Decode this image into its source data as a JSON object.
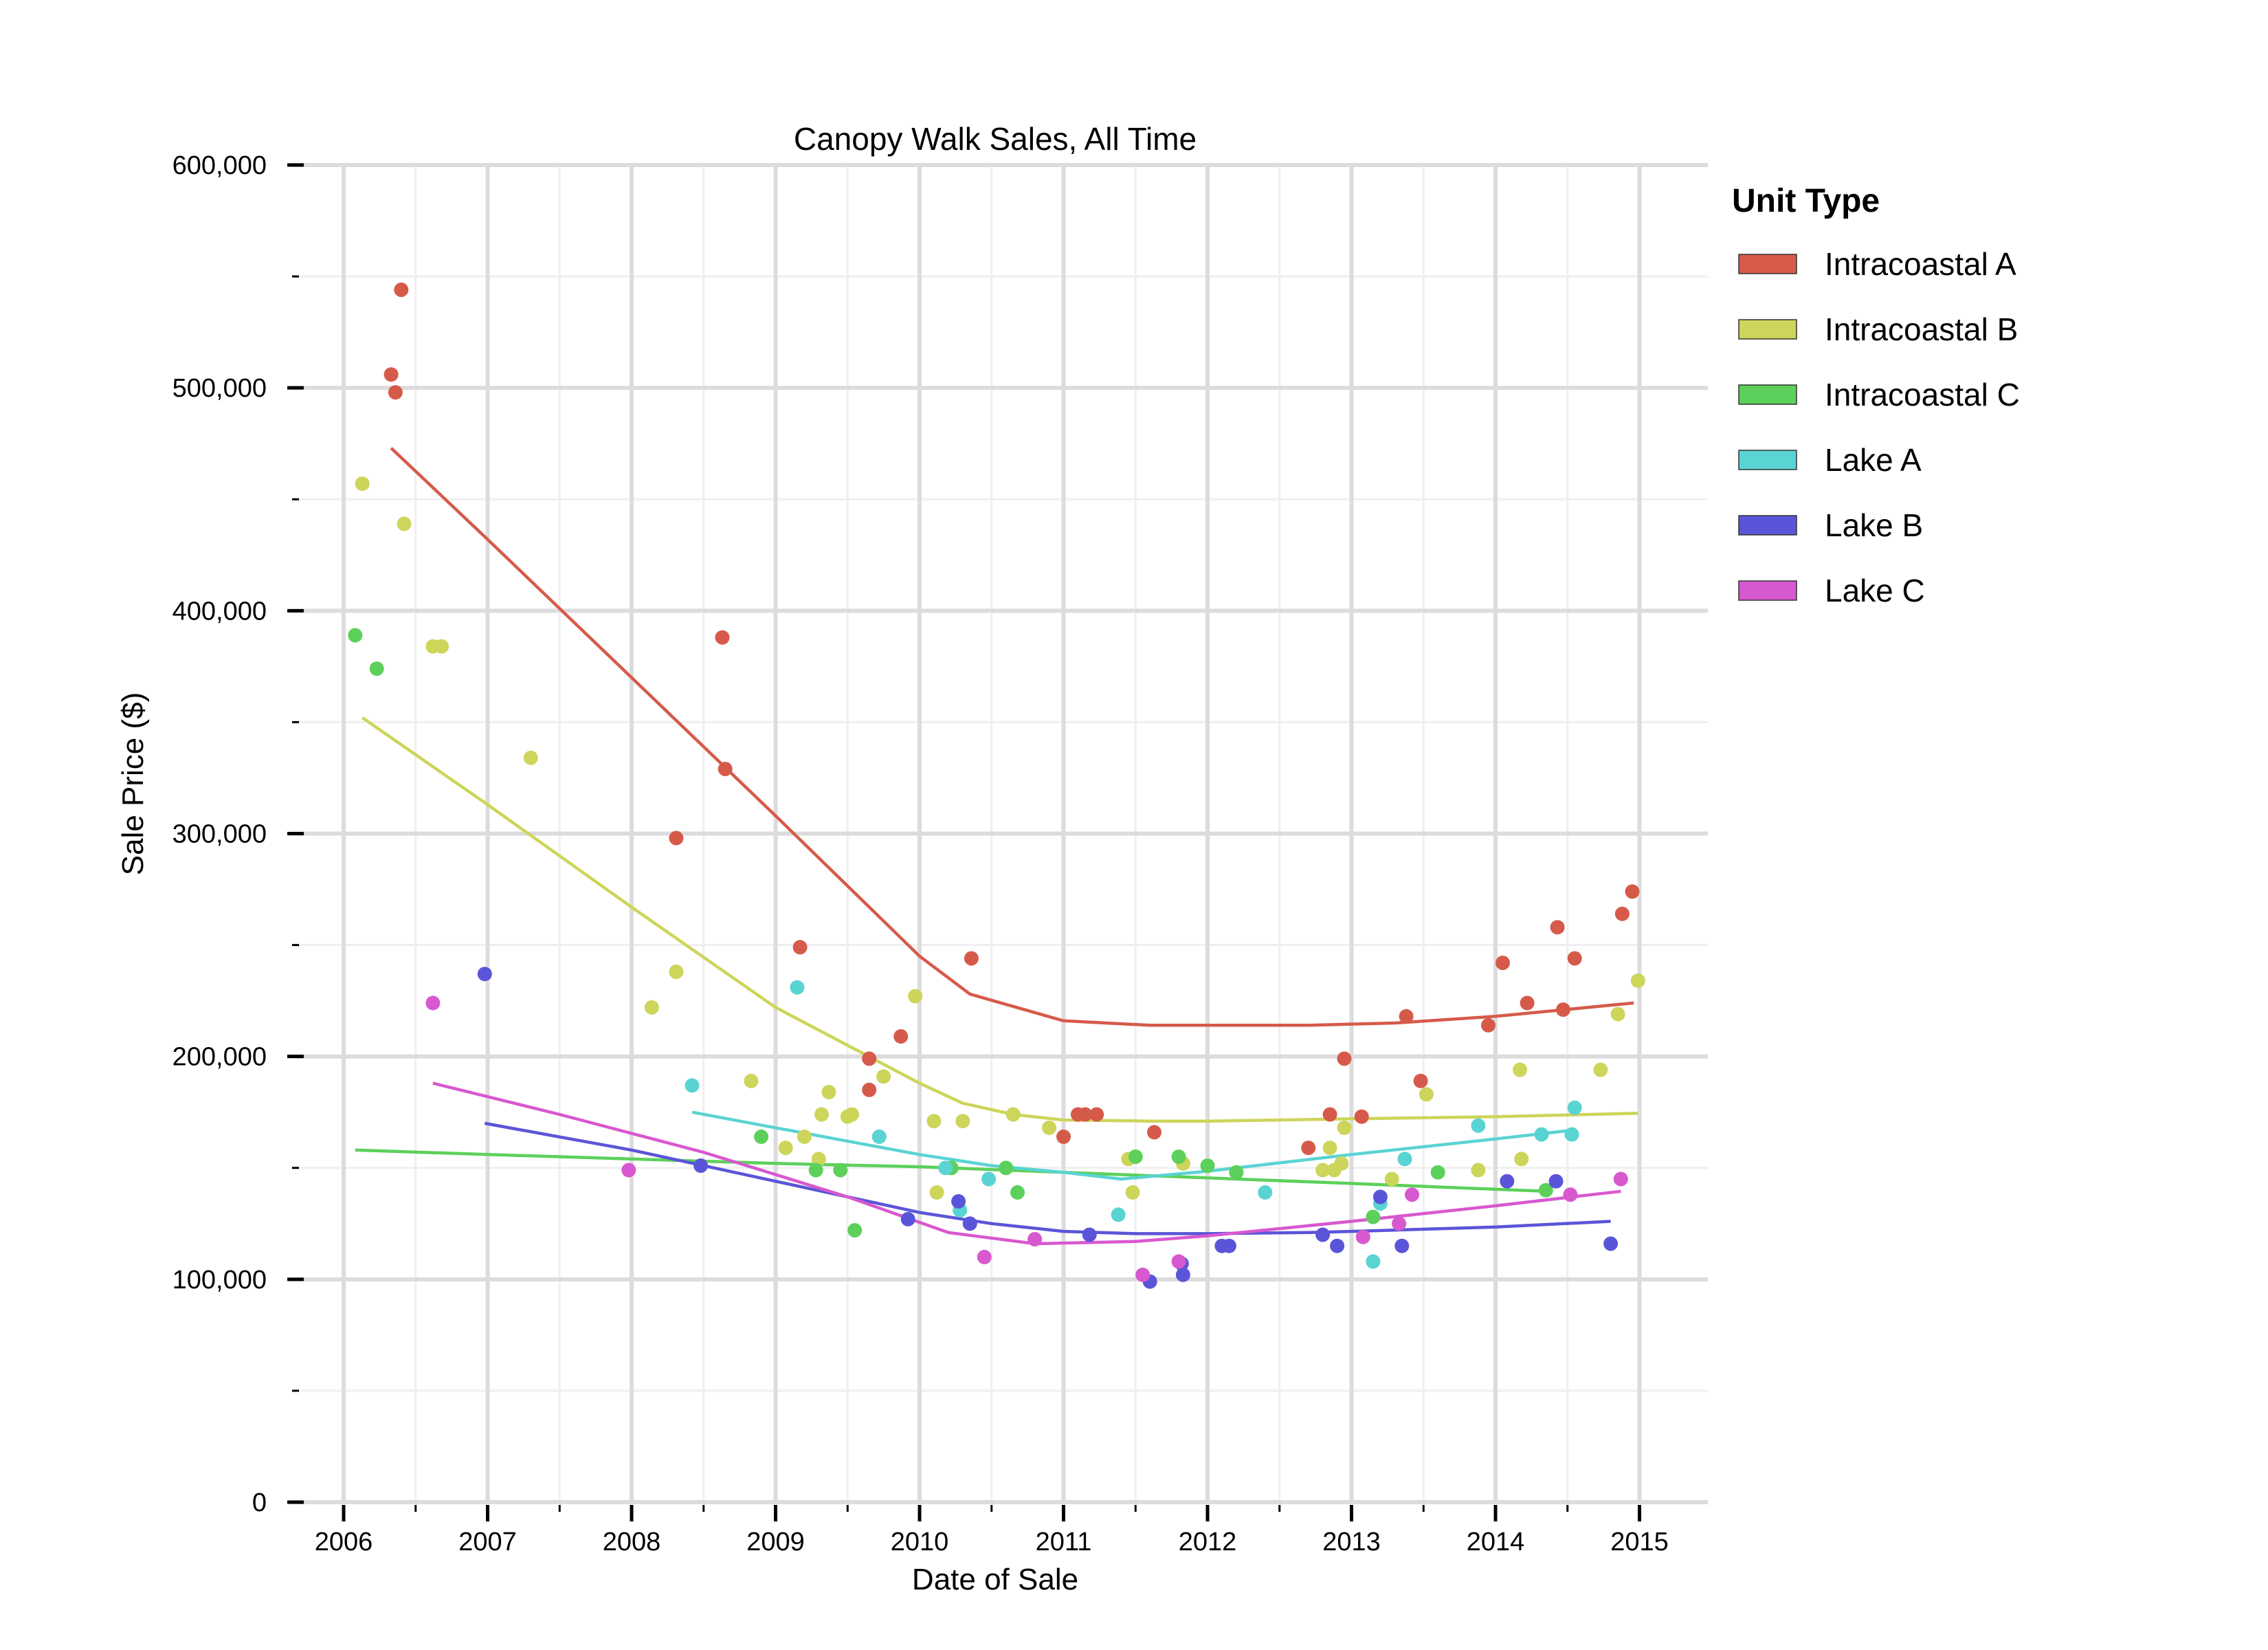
{
  "chart_data": {
    "type": "scatter",
    "title": "Canopy Walk Sales, All Time",
    "xlabel": "Date of Sale",
    "ylabel": "Sale Price ($)",
    "xlim": [
      2005.9,
      2015.3
    ],
    "ylim": [
      0,
      600000
    ],
    "x_ticks": [
      2006,
      2007,
      2008,
      2009,
      2010,
      2011,
      2012,
      2013,
      2014,
      2015
    ],
    "y_ticks": [
      0,
      100000,
      200000,
      300000,
      400000,
      500000,
      600000
    ],
    "x_tick_labels": [
      "2006",
      "2007",
      "2008",
      "2009",
      "2010",
      "2011",
      "2012",
      "2013",
      "2014",
      "2015"
    ],
    "y_tick_labels": [
      "0",
      "100,000",
      "200,000",
      "300,000",
      "400,000",
      "500,000",
      "600,000"
    ],
    "grid": true,
    "legend": {
      "title": "Unit Type",
      "placement": "right-top"
    },
    "series": [
      {
        "name": "Intracoastal A",
        "color": "#d65a4a",
        "points": [
          [
            2006.33,
            506000
          ],
          [
            2006.36,
            498000
          ],
          [
            2006.4,
            544000
          ],
          [
            2008.31,
            298000
          ],
          [
            2008.63,
            388000
          ],
          [
            2008.65,
            329000
          ],
          [
            2009.17,
            249000
          ],
          [
            2009.65,
            185000
          ],
          [
            2009.65,
            199000
          ],
          [
            2009.87,
            209000
          ],
          [
            2010.36,
            244000
          ],
          [
            2011.0,
            164000
          ],
          [
            2011.1,
            174000
          ],
          [
            2011.15,
            174000
          ],
          [
            2011.23,
            174000
          ],
          [
            2011.63,
            166000
          ],
          [
            2012.7,
            159000
          ],
          [
            2012.85,
            174000
          ],
          [
            2012.95,
            199000
          ],
          [
            2013.07,
            173000
          ],
          [
            2013.38,
            218000
          ],
          [
            2013.48,
            189000
          ],
          [
            2013.95,
            214000
          ],
          [
            2014.05,
            242000
          ],
          [
            2014.22,
            224000
          ],
          [
            2014.43,
            258000
          ],
          [
            2014.47,
            221000
          ],
          [
            2014.55,
            244000
          ],
          [
            2014.88,
            264000
          ],
          [
            2014.95,
            274000
          ]
        ],
        "trend": [
          [
            2006.33,
            473000
          ],
          [
            2007.0,
            432000
          ],
          [
            2008.0,
            370000
          ],
          [
            2009.0,
            308000
          ],
          [
            2010.0,
            245000
          ],
          [
            2010.35,
            228000
          ],
          [
            2011.0,
            216000
          ],
          [
            2011.6,
            214000
          ],
          [
            2012.0,
            214000
          ],
          [
            2012.7,
            214000
          ],
          [
            2013.3,
            215000
          ],
          [
            2014.0,
            218000
          ],
          [
            2014.96,
            224000
          ]
        ]
      },
      {
        "name": "Intracoastal B",
        "color": "#cdd55a",
        "points": [
          [
            2006.13,
            457000
          ],
          [
            2006.42,
            439000
          ],
          [
            2006.62,
            384000
          ],
          [
            2006.68,
            384000
          ],
          [
            2007.3,
            334000
          ],
          [
            2008.14,
            222000
          ],
          [
            2008.31,
            238000
          ],
          [
            2008.83,
            189000
          ],
          [
            2009.07,
            159000
          ],
          [
            2009.2,
            164000
          ],
          [
            2009.3,
            154000
          ],
          [
            2009.32,
            174000
          ],
          [
            2009.37,
            184000
          ],
          [
            2009.5,
            173000
          ],
          [
            2009.53,
            174000
          ],
          [
            2009.75,
            191000
          ],
          [
            2009.97,
            227000
          ],
          [
            2010.1,
            171000
          ],
          [
            2010.12,
            139000
          ],
          [
            2010.3,
            171000
          ],
          [
            2010.65,
            174000
          ],
          [
            2010.9,
            168000
          ],
          [
            2011.45,
            154000
          ],
          [
            2011.48,
            139000
          ],
          [
            2011.83,
            152000
          ],
          [
            2012.8,
            149000
          ],
          [
            2012.85,
            159000
          ],
          [
            2012.88,
            149000
          ],
          [
            2012.93,
            152000
          ],
          [
            2012.95,
            168000
          ],
          [
            2013.28,
            145000
          ],
          [
            2013.52,
            183000
          ],
          [
            2013.88,
            149000
          ],
          [
            2014.17,
            194000
          ],
          [
            2014.18,
            154000
          ],
          [
            2014.73,
            194000
          ],
          [
            2014.85,
            219000
          ],
          [
            2014.99,
            234000
          ]
        ],
        "trend": [
          [
            2006.13,
            352000
          ],
          [
            2007.0,
            313000
          ],
          [
            2008.0,
            267000
          ],
          [
            2009.0,
            222000
          ],
          [
            2010.0,
            188000
          ],
          [
            2010.3,
            179000
          ],
          [
            2010.65,
            174000
          ],
          [
            2011.0,
            171500
          ],
          [
            2011.6,
            171000
          ],
          [
            2012.0,
            171000
          ],
          [
            2013.0,
            172000
          ],
          [
            2014.0,
            173000
          ],
          [
            2014.99,
            174500
          ]
        ]
      },
      {
        "name": "Intracoastal C",
        "color": "#5cd05a",
        "points": [
          [
            2006.08,
            389000
          ],
          [
            2006.23,
            374000
          ],
          [
            2008.9,
            164000
          ],
          [
            2009.28,
            149000
          ],
          [
            2009.45,
            149000
          ],
          [
            2009.55,
            122000
          ],
          [
            2010.22,
            150000
          ],
          [
            2010.6,
            150000
          ],
          [
            2010.68,
            139000
          ],
          [
            2011.5,
            155000
          ],
          [
            2011.8,
            155000
          ],
          [
            2012.0,
            151000
          ],
          [
            2012.2,
            148000
          ],
          [
            2013.15,
            128000
          ],
          [
            2013.6,
            148000
          ],
          [
            2014.35,
            140000
          ]
        ],
        "trend": [
          [
            2006.08,
            158000
          ],
          [
            2007.0,
            156000
          ],
          [
            2008.0,
            154000
          ],
          [
            2009.0,
            152000
          ],
          [
            2010.0,
            150500
          ],
          [
            2011.0,
            148000
          ],
          [
            2012.0,
            145500
          ],
          [
            2013.0,
            143000
          ],
          [
            2014.35,
            139500
          ]
        ]
      },
      {
        "name": "Lake A",
        "color": "#5ad3d3",
        "points": [
          [
            2008.42,
            187000
          ],
          [
            2009.15,
            231000
          ],
          [
            2009.72,
            164000
          ],
          [
            2010.18,
            150000
          ],
          [
            2010.28,
            131000
          ],
          [
            2010.48,
            145000
          ],
          [
            2011.38,
            129000
          ],
          [
            2012.4,
            139000
          ],
          [
            2013.15,
            108000
          ],
          [
            2013.2,
            134000
          ],
          [
            2013.37,
            154000
          ],
          [
            2013.88,
            169000
          ],
          [
            2014.32,
            165000
          ],
          [
            2014.53,
            165000
          ],
          [
            2014.55,
            177000
          ]
        ],
        "trend": [
          [
            2008.42,
            175000
          ],
          [
            2009.0,
            168000
          ],
          [
            2010.0,
            156000
          ],
          [
            2010.5,
            151000
          ],
          [
            2011.0,
            148000
          ],
          [
            2011.4,
            145000
          ],
          [
            2012.0,
            148500
          ],
          [
            2013.0,
            156000
          ],
          [
            2014.0,
            163000
          ],
          [
            2014.55,
            167000
          ]
        ]
      },
      {
        "name": "Lake B",
        "color": "#5a55d8",
        "points": [
          [
            2006.98,
            237000
          ],
          [
            2008.48,
            151000
          ],
          [
            2009.92,
            127000
          ],
          [
            2010.27,
            135000
          ],
          [
            2010.35,
            125000
          ],
          [
            2011.18,
            120000
          ],
          [
            2011.6,
            99000
          ],
          [
            2011.82,
            107000
          ],
          [
            2011.83,
            102000
          ],
          [
            2012.1,
            115000
          ],
          [
            2012.15,
            115000
          ],
          [
            2012.8,
            120000
          ],
          [
            2012.9,
            115000
          ],
          [
            2013.2,
            137000
          ],
          [
            2013.35,
            115000
          ],
          [
            2014.08,
            144000
          ],
          [
            2014.42,
            144000
          ],
          [
            2014.8,
            116000
          ]
        ],
        "trend": [
          [
            2006.98,
            170000
          ],
          [
            2008.0,
            158000
          ],
          [
            2009.0,
            144000
          ],
          [
            2010.0,
            130000
          ],
          [
            2010.5,
            125000
          ],
          [
            2011.0,
            121500
          ],
          [
            2011.5,
            120500
          ],
          [
            2012.0,
            120500
          ],
          [
            2012.7,
            121000
          ],
          [
            2013.0,
            121500
          ],
          [
            2014.0,
            123500
          ],
          [
            2014.8,
            126000
          ]
        ]
      },
      {
        "name": "Lake C",
        "color": "#d858cf",
        "points": [
          [
            2006.62,
            224000
          ],
          [
            2007.98,
            149000
          ],
          [
            2010.45,
            110000
          ],
          [
            2010.8,
            118000
          ],
          [
            2011.55,
            102000
          ],
          [
            2011.8,
            108000
          ],
          [
            2013.08,
            119000
          ],
          [
            2013.33,
            125000
          ],
          [
            2013.42,
            138000
          ],
          [
            2014.52,
            138000
          ],
          [
            2014.87,
            145000
          ]
        ],
        "trend": [
          [
            2006.62,
            188000
          ],
          [
            2007.5,
            174000
          ],
          [
            2008.5,
            157000
          ],
          [
            2009.5,
            137000
          ],
          [
            2010.2,
            121000
          ],
          [
            2010.8,
            116000
          ],
          [
            2011.5,
            117000
          ],
          [
            2012.0,
            119500
          ],
          [
            2013.0,
            126000
          ],
          [
            2014.0,
            133000
          ],
          [
            2014.87,
            139500
          ]
        ]
      }
    ]
  }
}
